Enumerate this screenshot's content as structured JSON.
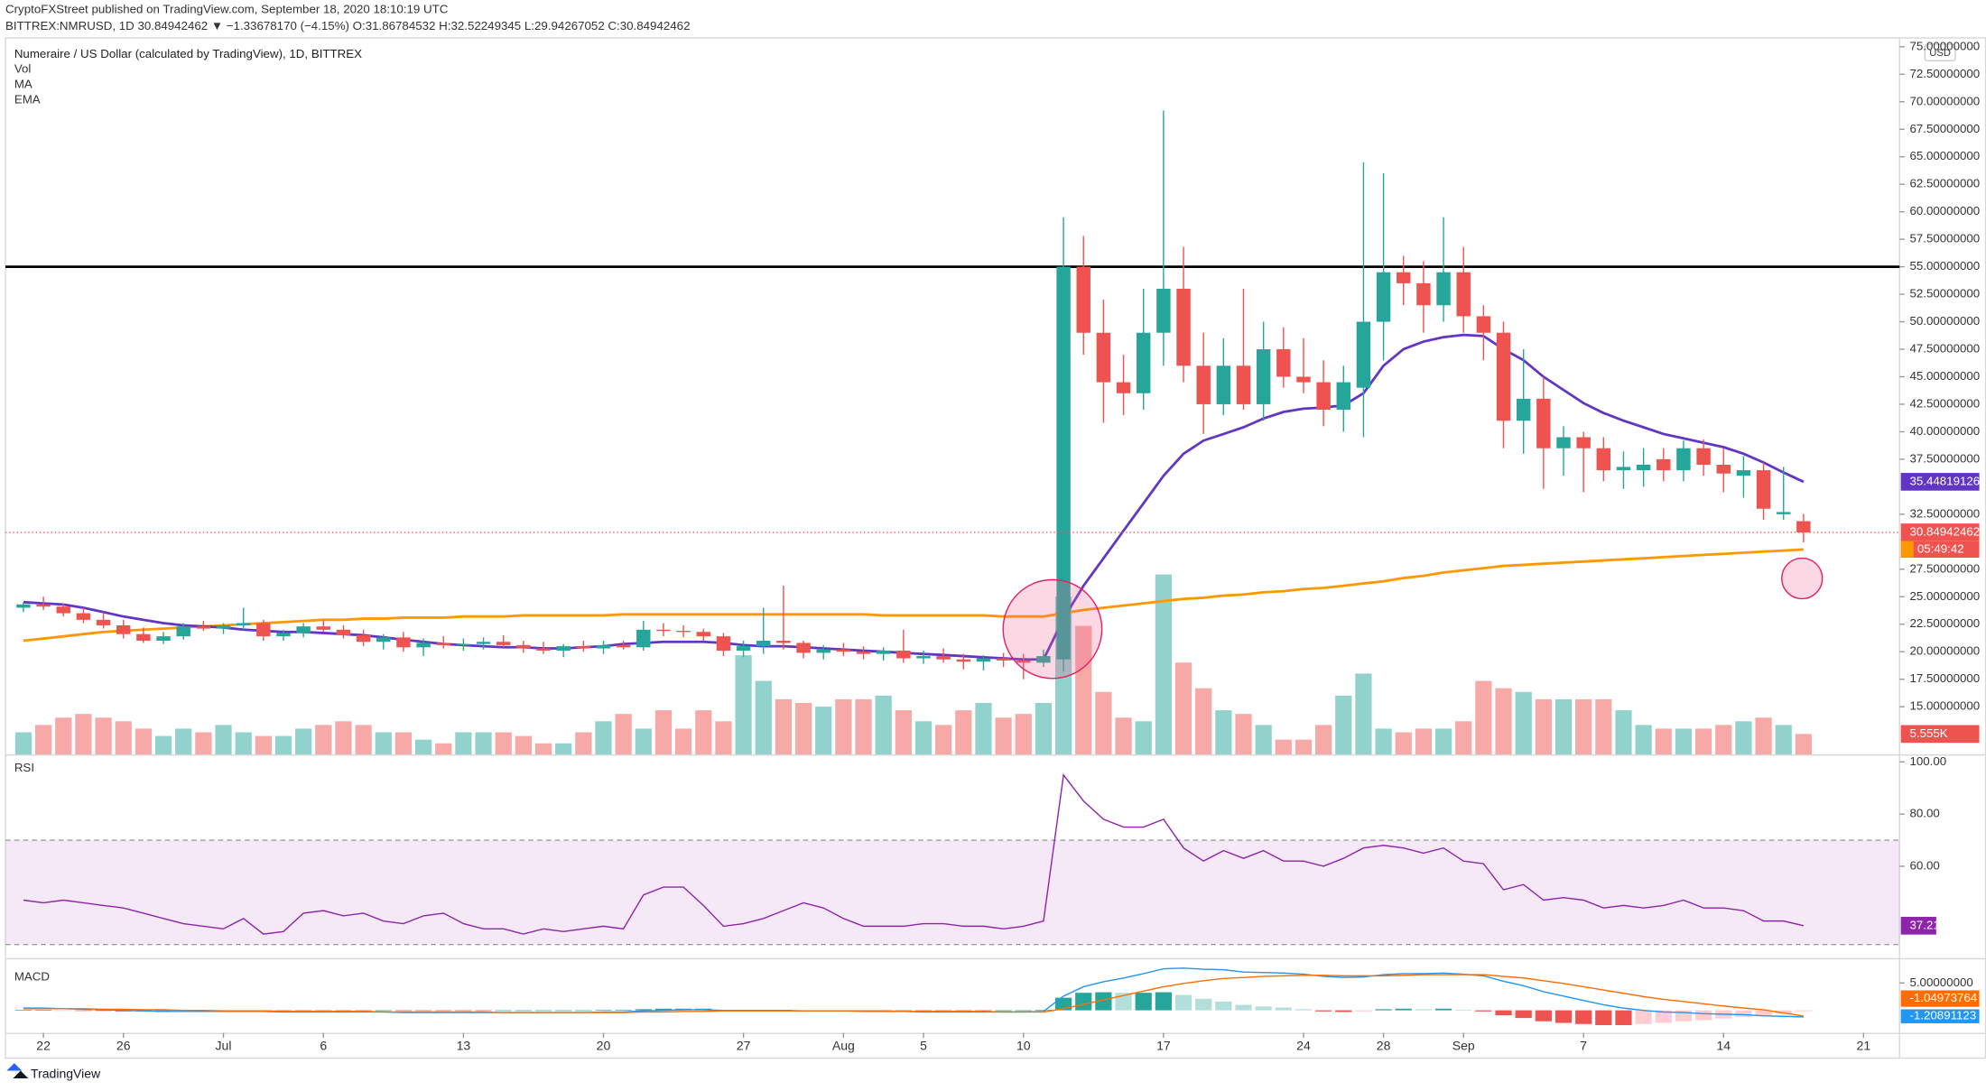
{
  "header": {
    "publisher": "CryptoFXStreet published on TradingView.com, September 18, 2020 18:10:19 UTC",
    "symbol_line": "BITTREX:NMRUSD, 1D  30.84942462 ▼ −1.33678170 (−4.15%)  O:31.86784532  H:32.52249345  L:29.94267052  C:30.84942462"
  },
  "brand": "TradingView",
  "chart_data": {
    "type": "candlestick",
    "title": "Numeraire / US Dollar (calculated by TradingView), 1D, BITTREX",
    "indicator_names": [
      "Vol",
      "MA",
      "EMA"
    ],
    "currency": "USD",
    "up_color": "#26a69a",
    "down_color": "#ef5350",
    "candles": [
      [
        24.0,
        24.5,
        23.6,
        24.3
      ],
      [
        24.3,
        25.0,
        23.8,
        24.1
      ],
      [
        24.1,
        24.4,
        23.2,
        23.5
      ],
      [
        23.5,
        24.0,
        22.6,
        22.9
      ],
      [
        22.9,
        23.6,
        22.1,
        22.4
      ],
      [
        22.4,
        22.9,
        21.2,
        21.6
      ],
      [
        21.6,
        22.2,
        20.8,
        21.0
      ],
      [
        21.0,
        21.8,
        20.7,
        21.4
      ],
      [
        21.4,
        22.6,
        21.1,
        22.3
      ],
      [
        22.3,
        22.8,
        21.9,
        22.1
      ],
      [
        22.1,
        22.6,
        21.6,
        22.4
      ],
      [
        22.4,
        24.0,
        22.0,
        22.6
      ],
      [
        22.6,
        22.9,
        21.0,
        21.4
      ],
      [
        21.4,
        22.0,
        21.0,
        21.7
      ],
      [
        21.7,
        22.6,
        21.3,
        22.3
      ],
      [
        22.3,
        22.9,
        21.8,
        22.0
      ],
      [
        22.0,
        22.4,
        21.2,
        21.5
      ],
      [
        21.5,
        22.0,
        20.5,
        20.9
      ],
      [
        20.9,
        21.6,
        20.2,
        21.3
      ],
      [
        21.3,
        21.8,
        20.0,
        20.4
      ],
      [
        20.4,
        21.2,
        19.6,
        20.8
      ],
      [
        20.8,
        21.4,
        20.3,
        20.6
      ],
      [
        20.6,
        21.2,
        20.1,
        20.7
      ],
      [
        20.7,
        21.3,
        20.2,
        20.9
      ],
      [
        20.9,
        21.5,
        20.4,
        20.6
      ],
      [
        20.6,
        21.0,
        19.9,
        20.3
      ],
      [
        20.3,
        20.9,
        19.8,
        20.1
      ],
      [
        20.1,
        20.7,
        19.5,
        20.5
      ],
      [
        20.5,
        21.0,
        20.0,
        20.3
      ],
      [
        20.3,
        21.0,
        19.8,
        20.6
      ],
      [
        20.6,
        21.0,
        20.2,
        20.4
      ],
      [
        20.4,
        22.8,
        20.1,
        22.0
      ],
      [
        22.0,
        22.6,
        21.4,
        21.9
      ],
      [
        21.9,
        22.4,
        21.3,
        21.8
      ],
      [
        21.8,
        22.1,
        21.0,
        21.4
      ],
      [
        21.4,
        21.7,
        19.6,
        20.1
      ],
      [
        20.1,
        21.0,
        19.5,
        20.5
      ],
      [
        20.5,
        24.0,
        19.8,
        21.0
      ],
      [
        21.0,
        26.0,
        20.2,
        20.8
      ],
      [
        20.8,
        21.0,
        19.4,
        19.9
      ],
      [
        19.9,
        20.6,
        19.3,
        20.2
      ],
      [
        20.2,
        20.8,
        19.6,
        20.0
      ],
      [
        20.0,
        20.5,
        19.3,
        19.8
      ],
      [
        19.8,
        20.4,
        19.2,
        20.1
      ],
      [
        20.1,
        22.0,
        19.0,
        19.4
      ],
      [
        19.4,
        20.1,
        18.9,
        19.6
      ],
      [
        19.6,
        20.3,
        19.0,
        19.3
      ],
      [
        19.3,
        19.8,
        18.4,
        19.1
      ],
      [
        19.1,
        19.7,
        18.3,
        19.4
      ],
      [
        19.4,
        19.9,
        18.6,
        19.2
      ],
      [
        19.2,
        19.8,
        17.5,
        19.0
      ],
      [
        19.0,
        20.2,
        18.6,
        19.6
      ],
      [
        19.3,
        59.5,
        18.2,
        55.0
      ],
      [
        55.0,
        57.8,
        47.0,
        49.0
      ],
      [
        49.0,
        52.0,
        40.8,
        44.5
      ],
      [
        44.5,
        47.0,
        41.5,
        43.5
      ],
      [
        43.5,
        53.0,
        42.0,
        49.0
      ],
      [
        49.0,
        69.2,
        46.0,
        53.0
      ],
      [
        53.0,
        56.8,
        44.5,
        46.0
      ],
      [
        46.0,
        49.0,
        39.8,
        42.5
      ],
      [
        42.5,
        48.5,
        41.5,
        46.0
      ],
      [
        46.0,
        53.0,
        42.0,
        42.5
      ],
      [
        42.5,
        50.0,
        41.0,
        47.5
      ],
      [
        47.5,
        49.5,
        44.0,
        45.0
      ],
      [
        45.0,
        48.5,
        43.5,
        44.5
      ],
      [
        44.5,
        46.5,
        40.5,
        42.0
      ],
      [
        42.0,
        46.0,
        40.0,
        44.5
      ],
      [
        44.0,
        64.5,
        39.5,
        50.0
      ],
      [
        50.0,
        63.5,
        46.5,
        54.5
      ],
      [
        54.5,
        56.0,
        51.5,
        53.5
      ],
      [
        53.5,
        55.5,
        49.0,
        51.5
      ],
      [
        51.5,
        59.5,
        50.0,
        54.5
      ],
      [
        54.5,
        56.8,
        49.0,
        50.5
      ],
      [
        50.5,
        51.5,
        46.5,
        49.0
      ],
      [
        49.0,
        50.0,
        38.5,
        41.0
      ],
      [
        41.0,
        47.5,
        38.0,
        43.0
      ],
      [
        43.0,
        45.0,
        34.8,
        38.5
      ],
      [
        38.5,
        40.5,
        36.0,
        39.5
      ],
      [
        39.5,
        40.0,
        34.5,
        38.5
      ],
      [
        38.5,
        39.5,
        35.5,
        36.5
      ],
      [
        36.5,
        38.2,
        34.8,
        36.8
      ],
      [
        36.5,
        38.5,
        35.0,
        37.0
      ],
      [
        37.5,
        38.5,
        35.5,
        36.5
      ],
      [
        36.5,
        39.2,
        35.5,
        38.5
      ],
      [
        38.5,
        39.3,
        36.0,
        37.0
      ],
      [
        37.0,
        38.5,
        34.5,
        36.2
      ],
      [
        36.0,
        37.8,
        34.0,
        36.5
      ],
      [
        36.5,
        37.2,
        32.0,
        33.0
      ],
      [
        32.5,
        36.8,
        32.0,
        32.7
      ],
      [
        31.86784532,
        32.52249345,
        29.94267052,
        30.84942462
      ]
    ],
    "price_label": "30.84942462",
    "countdown": "05:49:42",
    "resistance": 55,
    "volume": {
      "values": [
        6,
        8,
        10,
        11,
        10,
        9,
        7,
        5,
        7,
        6,
        8,
        6,
        5,
        5,
        7,
        8,
        9,
        8,
        6,
        6,
        4,
        3,
        6,
        6,
        6,
        5,
        3,
        3,
        6,
        9,
        11,
        7,
        12,
        7,
        12,
        9,
        27,
        20,
        15,
        14,
        13,
        15,
        15,
        16,
        12,
        9,
        8,
        12,
        14,
        10,
        11,
        14,
        43,
        35,
        17,
        10,
        9,
        49,
        25,
        18,
        12,
        11,
        8,
        4,
        4,
        8,
        16,
        22,
        7,
        6,
        7,
        7,
        9,
        20,
        18,
        17,
        15,
        15,
        15,
        15,
        12,
        8,
        7,
        7,
        7,
        8,
        9,
        10,
        8,
        5.555
      ],
      "last_label": "5.555K"
    },
    "ma": {
      "name": "MA",
      "color": "#6236c4",
      "last_label": "35.44819126",
      "values": [
        24.5,
        24.4,
        24.3,
        24.0,
        23.6,
        23.2,
        22.9,
        22.6,
        22.4,
        22.3,
        22.2,
        22.0,
        21.9,
        21.8,
        21.8,
        21.7,
        21.6,
        21.5,
        21.3,
        21.1,
        20.9,
        20.7,
        20.6,
        20.5,
        20.4,
        20.4,
        20.3,
        20.3,
        20.4,
        20.5,
        20.7,
        20.8,
        20.9,
        20.9,
        20.9,
        20.8,
        20.6,
        20.5,
        20.5,
        20.4,
        20.3,
        20.2,
        20.1,
        20.0,
        19.9,
        19.8,
        19.7,
        19.6,
        19.5,
        19.4,
        19.3,
        19.3,
        23.0,
        26.0,
        28.5,
        31.0,
        33.5,
        36.0,
        38.0,
        39.2,
        39.8,
        40.4,
        41.2,
        41.8,
        42.1,
        42.2,
        42.4,
        43.5,
        46.0,
        47.5,
        48.2,
        48.6,
        48.8,
        48.7,
        47.5,
        46.5,
        45.0,
        43.8,
        42.6,
        41.7,
        41.0,
        40.4,
        39.8,
        39.4,
        39.0,
        38.6,
        38.0,
        37.2,
        36.3,
        35.45
      ]
    },
    "ema": {
      "name": "EMA",
      "color": "#ff9800",
      "values": [
        21.0,
        21.2,
        21.4,
        21.6,
        21.8,
        21.9,
        22.0,
        22.1,
        22.2,
        22.3,
        22.4,
        22.5,
        22.6,
        22.7,
        22.8,
        22.9,
        22.9,
        23.0,
        23.0,
        23.1,
        23.1,
        23.1,
        23.2,
        23.2,
        23.2,
        23.3,
        23.3,
        23.3,
        23.3,
        23.3,
        23.4,
        23.4,
        23.4,
        23.4,
        23.4,
        23.4,
        23.4,
        23.4,
        23.4,
        23.4,
        23.4,
        23.4,
        23.4,
        23.3,
        23.3,
        23.3,
        23.3,
        23.3,
        23.3,
        23.2,
        23.2,
        23.2,
        23.5,
        23.8,
        24.0,
        24.2,
        24.4,
        24.6,
        24.8,
        24.9,
        25.1,
        25.2,
        25.4,
        25.5,
        25.7,
        25.8,
        26.0,
        26.2,
        26.4,
        26.7,
        26.9,
        27.2,
        27.4,
        27.6,
        27.8,
        27.9,
        28.0,
        28.1,
        28.2,
        28.3,
        28.4,
        28.5,
        28.6,
        28.7,
        28.8,
        28.9,
        29.0,
        29.1,
        29.2,
        29.3
      ]
    },
    "ylim": [
      10.67,
      75.8
    ],
    "yticks": [
      {
        "value": 15,
        "label": "15.00000000"
      },
      {
        "value": 17.5,
        "label": "17.50000000"
      },
      {
        "value": 20,
        "label": "20.00000000"
      },
      {
        "value": 22.5,
        "label": "22.50000000"
      },
      {
        "value": 25,
        "label": "25.00000000"
      },
      {
        "value": 27.5,
        "label": "27.50000000"
      },
      {
        "value": 32.5,
        "label": "32.50000000"
      },
      {
        "value": 37.5,
        "label": "37.50000000"
      },
      {
        "value": 40,
        "label": "40.00000000"
      },
      {
        "value": 42.5,
        "label": "42.50000000"
      },
      {
        "value": 45,
        "label": "45.00000000"
      },
      {
        "value": 47.5,
        "label": "47.50000000"
      },
      {
        "value": 50,
        "label": "50.00000000"
      },
      {
        "value": 52.5,
        "label": "52.50000000"
      },
      {
        "value": 55,
        "label": "55.00000000"
      },
      {
        "value": 57.5,
        "label": "57.50000000"
      },
      {
        "value": 60,
        "label": "60.00000000"
      },
      {
        "value": 62.5,
        "label": "62.50000000"
      },
      {
        "value": 65,
        "label": "65.00000000"
      },
      {
        "value": 67.5,
        "label": "67.50000000"
      },
      {
        "value": 70,
        "label": "70.00000000"
      },
      {
        "value": 72.5,
        "label": "72.50000000"
      },
      {
        "value": 75,
        "label": "75.00000000"
      }
    ],
    "xlim": [
      -0.9,
      93.8
    ],
    "xticks": [
      {
        "value": 1,
        "label": "22"
      },
      {
        "value": 5,
        "label": "26"
      },
      {
        "value": 10,
        "label": "Jul"
      },
      {
        "value": 15,
        "label": "6"
      },
      {
        "value": 22,
        "label": "13"
      },
      {
        "value": 29,
        "label": "20"
      },
      {
        "value": 36,
        "label": "27"
      },
      {
        "value": 41,
        "label": "Aug"
      },
      {
        "value": 45,
        "label": "5"
      },
      {
        "value": 50,
        "label": "10"
      },
      {
        "value": 57,
        "label": "17"
      },
      {
        "value": 64,
        "label": "24"
      },
      {
        "value": 68,
        "label": "28"
      },
      {
        "value": 72,
        "label": "Sep"
      },
      {
        "value": 78,
        "label": "7"
      },
      {
        "value": 85,
        "label": "14"
      },
      {
        "value": 92,
        "label": "21"
      }
    ],
    "rsi": {
      "name": "RSI",
      "color": "#8e24aa",
      "last_label": "37.21",
      "band": [
        30,
        70
      ],
      "ylim": [
        24.8,
        102.4
      ],
      "yticks": [
        {
          "value": 100,
          "label": "100.00"
        },
        {
          "value": 80,
          "label": "80.00"
        },
        {
          "value": 60,
          "label": "60.00"
        }
      ],
      "values": [
        47,
        46,
        47,
        46,
        45,
        44,
        42,
        40,
        38,
        37,
        36,
        40,
        34,
        35,
        42,
        43,
        41,
        42,
        39,
        38,
        41,
        42,
        38,
        36,
        36,
        34,
        36,
        35,
        36,
        37,
        36,
        49,
        52,
        52,
        45,
        37,
        38,
        40,
        43,
        46,
        44,
        40,
        37,
        37,
        37,
        38,
        38,
        37,
        37,
        36,
        37,
        39,
        95,
        85,
        78,
        75,
        75,
        78,
        67,
        62,
        66,
        63,
        66,
        62,
        62,
        60,
        63,
        67,
        68,
        67,
        65,
        67,
        62,
        61,
        51,
        53,
        47,
        48,
        47,
        44,
        45,
        44,
        45,
        47,
        44,
        44,
        43,
        39,
        39,
        37.21
      ]
    },
    "macd": {
      "name": "MACD",
      "macd_color": "#2196f3",
      "signal_color": "#ff6d00",
      "macd_label": "-1.20891123",
      "signal_label": "-1.04973764",
      "ylim": [
        -4.1,
        9.3
      ],
      "yticks": [
        {
          "value": 5,
          "label": "5.00000000"
        }
      ],
      "macd": [
        0.4,
        0.4,
        0.3,
        0.2,
        0.1,
        0.0,
        -0.1,
        -0.2,
        -0.2,
        -0.2,
        -0.2,
        -0.2,
        -0.2,
        -0.3,
        -0.3,
        -0.3,
        -0.3,
        -0.3,
        -0.3,
        -0.4,
        -0.4,
        -0.4,
        -0.4,
        -0.4,
        -0.4,
        -0.4,
        -0.4,
        -0.4,
        -0.4,
        -0.3,
        -0.3,
        -0.1,
        0.0,
        0.1,
        0.1,
        0.0,
        0.0,
        0.0,
        0.0,
        -0.1,
        -0.1,
        -0.1,
        -0.2,
        -0.2,
        -0.2,
        -0.3,
        -0.3,
        -0.3,
        -0.3,
        -0.3,
        -0.3,
        -0.2,
        2.6,
        4.3,
        5.2,
        5.9,
        6.7,
        7.6,
        7.7,
        7.5,
        7.4,
        7.0,
        6.9,
        6.8,
        6.6,
        6.2,
        6.0,
        6.1,
        6.5,
        6.7,
        6.7,
        6.8,
        6.6,
        6.3,
        5.3,
        4.5,
        3.4,
        2.6,
        1.8,
        1.0,
        0.4,
        0.0,
        -0.3,
        -0.4,
        -0.6,
        -0.7,
        -0.8,
        -1.0,
        -1.1,
        -1.20891123
      ],
      "signal": [
        0.3,
        0.3,
        0.3,
        0.3,
        0.2,
        0.2,
        0.1,
        0.1,
        0.0,
        0.0,
        -0.1,
        -0.1,
        -0.1,
        -0.2,
        -0.2,
        -0.2,
        -0.2,
        -0.2,
        -0.3,
        -0.3,
        -0.3,
        -0.3,
        -0.3,
        -0.3,
        -0.4,
        -0.4,
        -0.4,
        -0.4,
        -0.4,
        -0.4,
        -0.4,
        -0.3,
        -0.3,
        -0.2,
        -0.2,
        -0.1,
        -0.1,
        -0.1,
        -0.1,
        -0.1,
        -0.1,
        -0.1,
        -0.1,
        -0.1,
        -0.2,
        -0.2,
        -0.2,
        -0.2,
        -0.2,
        -0.3,
        -0.3,
        -0.3,
        0.3,
        1.1,
        1.9,
        2.7,
        3.5,
        4.3,
        4.9,
        5.4,
        5.8,
        6.0,
        6.2,
        6.3,
        6.4,
        6.4,
        6.3,
        6.3,
        6.3,
        6.4,
        6.5,
        6.5,
        6.5,
        6.5,
        6.2,
        5.9,
        5.4,
        4.9,
        4.3,
        3.7,
        3.1,
        2.5,
        2.0,
        1.6,
        1.2,
        0.8,
        0.4,
        0.1,
        -0.5,
        -1.04973764
      ],
      "histogram": [
        0.1,
        0.1,
        0.0,
        -0.1,
        -0.1,
        -0.2,
        -0.2,
        -0.3,
        -0.2,
        -0.2,
        -0.1,
        -0.1,
        -0.1,
        -0.1,
        -0.1,
        -0.1,
        -0.1,
        -0.1,
        0.0,
        -0.1,
        -0.1,
        -0.1,
        -0.1,
        -0.1,
        0.0,
        0.0,
        0.0,
        0.0,
        0.0,
        0.1,
        0.1,
        0.2,
        0.3,
        0.3,
        0.3,
        0.1,
        0.1,
        0.1,
        0.1,
        0.0,
        0.0,
        0.0,
        -0.1,
        -0.1,
        0.0,
        -0.1,
        -0.1,
        -0.1,
        -0.1,
        0.0,
        0.0,
        0.1,
        2.3,
        3.2,
        3.3,
        3.2,
        3.2,
        3.3,
        2.8,
        2.1,
        1.6,
        1.0,
        0.7,
        0.5,
        0.2,
        -0.2,
        -0.3,
        -0.2,
        0.2,
        0.3,
        0.2,
        0.3,
        0.1,
        -0.2,
        -0.9,
        -1.4,
        -2.0,
        -2.3,
        -2.5,
        -2.7,
        -2.7,
        -2.5,
        -2.3,
        -2.0,
        -1.8,
        -1.5,
        -1.2,
        -1.1,
        -0.6,
        -0.16
      ]
    }
  }
}
